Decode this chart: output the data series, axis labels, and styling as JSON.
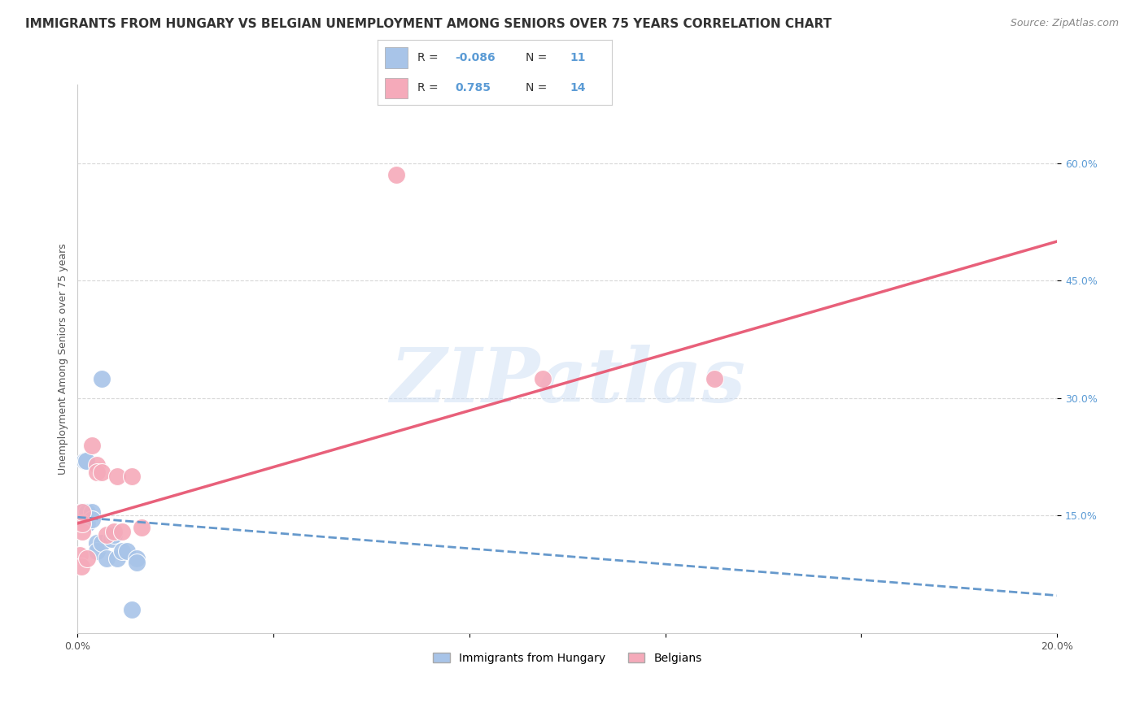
{
  "title": "IMMIGRANTS FROM HUNGARY VS BELGIAN UNEMPLOYMENT AMONG SENIORS OVER 75 YEARS CORRELATION CHART",
  "source": "Source: ZipAtlas.com",
  "ylabel": "Unemployment Among Seniors over 75 years",
  "xlim": [
    0.0,
    0.2
  ],
  "ylim": [
    0.0,
    0.7
  ],
  "xticks": [
    0.0,
    0.04,
    0.08,
    0.12,
    0.16,
    0.2
  ],
  "xtick_labels": [
    "0.0%",
    "",
    "",
    "",
    "",
    "20.0%"
  ],
  "ytick_positions": [
    0.15,
    0.3,
    0.45,
    0.6
  ],
  "ytick_labels": [
    "15.0%",
    "30.0%",
    "45.0%",
    "60.0%"
  ],
  "background_color": "#ffffff",
  "grid_color": "#d8d8d8",
  "watermark": "ZIPatlas",
  "blue_color": "#a8c4e8",
  "pink_color": "#f5aaba",
  "blue_line_color": "#6699cc",
  "pink_line_color": "#e8607a",
  "blue_scatter": [
    [
      0.0008,
      0.155
    ],
    [
      0.0015,
      0.22
    ],
    [
      0.0018,
      0.22
    ],
    [
      0.002,
      0.155
    ],
    [
      0.002,
      0.14
    ],
    [
      0.003,
      0.155
    ],
    [
      0.003,
      0.145
    ],
    [
      0.004,
      0.115
    ],
    [
      0.004,
      0.105
    ],
    [
      0.005,
      0.325
    ],
    [
      0.005,
      0.115
    ],
    [
      0.006,
      0.095
    ],
    [
      0.007,
      0.12
    ],
    [
      0.0075,
      0.125
    ],
    [
      0.008,
      0.095
    ],
    [
      0.009,
      0.105
    ],
    [
      0.01,
      0.105
    ],
    [
      0.011,
      0.03
    ],
    [
      0.012,
      0.095
    ],
    [
      0.012,
      0.09
    ]
  ],
  "pink_scatter": [
    [
      0.0005,
      0.1
    ],
    [
      0.0008,
      0.085
    ],
    [
      0.001,
      0.13
    ],
    [
      0.001,
      0.14
    ],
    [
      0.001,
      0.155
    ],
    [
      0.002,
      0.095
    ],
    [
      0.003,
      0.24
    ],
    [
      0.004,
      0.215
    ],
    [
      0.004,
      0.205
    ],
    [
      0.005,
      0.205
    ],
    [
      0.006,
      0.125
    ],
    [
      0.0075,
      0.13
    ],
    [
      0.008,
      0.2
    ],
    [
      0.009,
      0.13
    ],
    [
      0.011,
      0.2
    ],
    [
      0.013,
      0.135
    ],
    [
      0.065,
      0.585
    ],
    [
      0.095,
      0.325
    ],
    [
      0.13,
      0.325
    ]
  ],
  "blue_line_x": [
    0.0,
    0.2
  ],
  "blue_line_y": [
    0.148,
    0.048
  ],
  "pink_line_x": [
    0.0,
    0.2
  ],
  "pink_line_y": [
    0.14,
    0.5
  ],
  "title_fontsize": 11,
  "source_fontsize": 9,
  "axis_label_fontsize": 9,
  "tick_fontsize": 9
}
